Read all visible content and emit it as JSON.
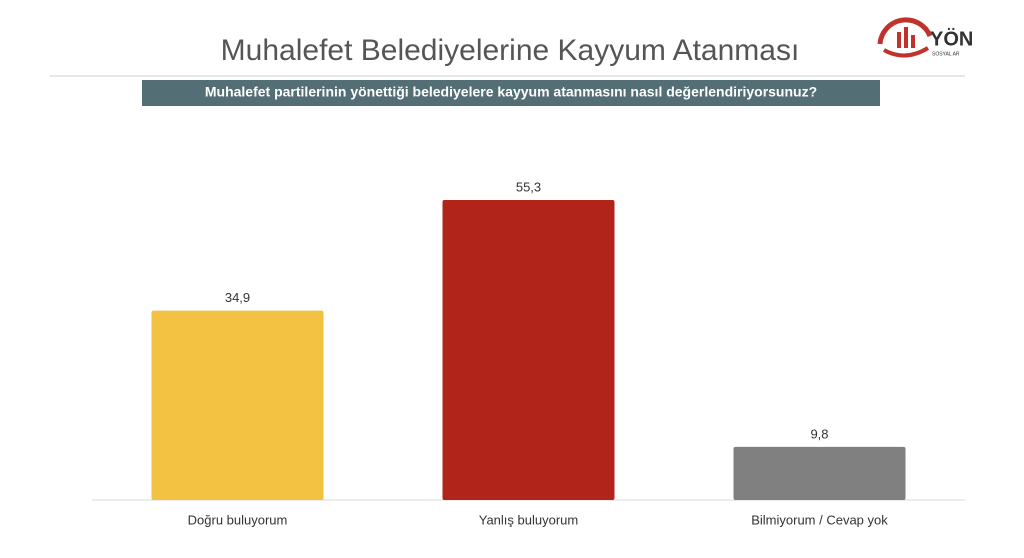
{
  "chart_data": {
    "type": "bar",
    "title": "Muhalefet Belediyelerine Kayyum Atanması",
    "subtitle": "Muhalefet partilerinin yönettiği belediyelere kayyum atanmasını nasıl değerlendiriyorsunuz?",
    "logo_text": "YÖN",
    "logo_subtext": "SOSYAL AR",
    "categories": [
      "Doğru buluyorum",
      "Yanlış buluyorum",
      "Bilmiyorum / Cevap yok"
    ],
    "values": [
      34.9,
      55.3,
      9.8
    ],
    "value_labels": [
      "34,9",
      "55,3",
      "9,8"
    ],
    "colors": [
      "#f4c242",
      "#b0241a",
      "#808080"
    ]
  }
}
